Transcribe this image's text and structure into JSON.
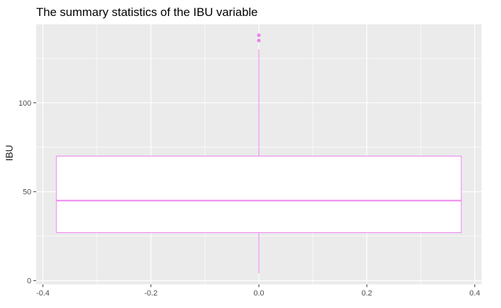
{
  "chart_data": {
    "type": "box",
    "title": "The summary statistics of the IBU variable",
    "xlabel": "",
    "ylabel": "IBU",
    "xlim": [
      -0.4,
      0.4
    ],
    "ylim": [
      0,
      140
    ],
    "x_ticks": [
      "-0.4",
      "-0.2",
      "0.0",
      "0.2",
      "0.4"
    ],
    "y_ticks": [
      "0",
      "50",
      "100"
    ],
    "x_tick_values": [
      -0.4,
      -0.2,
      0.0,
      0.2,
      0.4
    ],
    "y_tick_values": [
      0,
      50,
      100
    ],
    "box": {
      "x": 0.0,
      "x_range": [
        -0.375,
        0.375
      ],
      "min": 4,
      "q1": 27,
      "median": 45,
      "q3": 70,
      "max": 130,
      "outliers": [
        135,
        138
      ]
    },
    "grid": true,
    "colors": {
      "panel": "#ebebeb",
      "grid": "#ffffff",
      "box_outline": "#ee82ee",
      "box_fill": "#ffffff",
      "outlier": "#ee82ee"
    }
  }
}
